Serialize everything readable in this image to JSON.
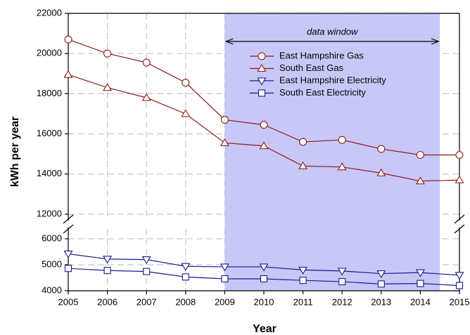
{
  "chart_data": {
    "type": "line",
    "xlabel": "Year",
    "ylabel": "kWh per year",
    "x": [
      2005,
      2006,
      2007,
      2008,
      2009,
      2010,
      2011,
      2012,
      2013,
      2014,
      2015
    ],
    "xlim": [
      2005,
      2015
    ],
    "xticks": [
      2005,
      2006,
      2007,
      2008,
      2009,
      2010,
      2011,
      2012,
      2013,
      2014,
      2015
    ],
    "ylim": [
      12000,
      22000
    ],
    "yticks": [
      12000,
      14000,
      16000,
      18000,
      20000,
      22000
    ],
    "y2lim": [
      4000,
      6000
    ],
    "y2ticks": [
      4000,
      5000,
      6000
    ],
    "grid": true,
    "legend": "upper center",
    "shaded_region": {
      "label": "data window",
      "x": [
        2009,
        2014.5
      ],
      "color": "#c8c8f8"
    },
    "series": [
      {
        "name": "East Hampshire Gas",
        "color": "#8b1a1a",
        "marker": "circle",
        "values": [
          20700,
          20000,
          19550,
          18550,
          16700,
          16450,
          15600,
          15700,
          15250,
          14950,
          14950
        ]
      },
      {
        "name": "South East Gas",
        "color": "#8b1a1a",
        "marker": "triangle-up",
        "values": [
          18950,
          18300,
          17800,
          17000,
          15550,
          15400,
          14400,
          14350,
          14050,
          13650,
          13700
        ]
      },
      {
        "name": "East Hampshire Electricity",
        "color": "#1a1a8b",
        "marker": "triangle-down",
        "axis": "y2",
        "values": [
          5420,
          5220,
          5200,
          4940,
          4920,
          4920,
          4800,
          4760,
          4660,
          4700,
          4600
        ]
      },
      {
        "name": "South East Electricity",
        "color": "#1a1a8b",
        "marker": "square",
        "axis": "y2",
        "values": [
          4860,
          4780,
          4740,
          4530,
          4460,
          4460,
          4400,
          4350,
          4260,
          4280,
          4200
        ]
      }
    ]
  }
}
